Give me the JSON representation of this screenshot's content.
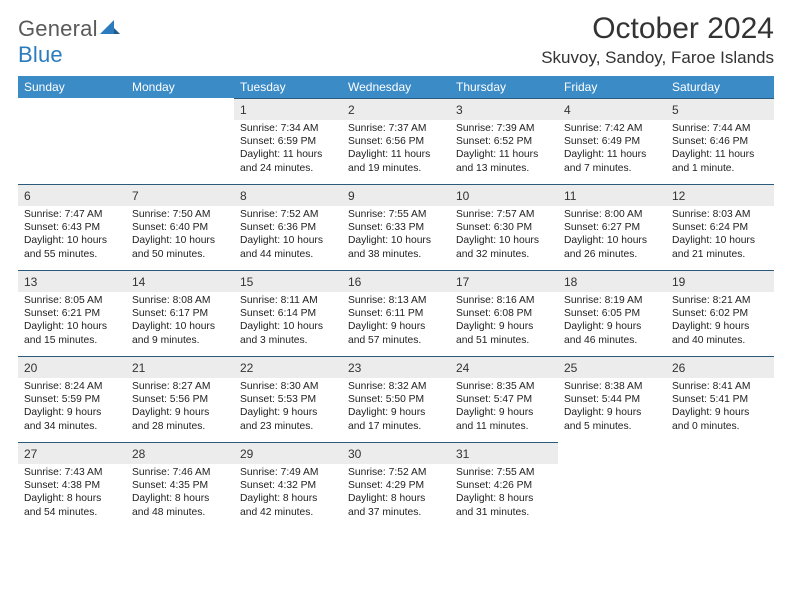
{
  "header": {
    "logo_part1": "General",
    "logo_part2": "Blue",
    "title": "October 2024",
    "location": "Skuvoy, Sandoy, Faroe Islands"
  },
  "calendar": {
    "day_labels": [
      "Sunday",
      "Monday",
      "Tuesday",
      "Wednesday",
      "Thursday",
      "Friday",
      "Saturday"
    ],
    "header_bg": "#3b8bc7",
    "header_fg": "#ffffff",
    "daynum_bg": "#ececec",
    "row_border": "#2b5a7b",
    "text_color": "#222222",
    "font_size_header": 12,
    "font_size_daynum": 12,
    "font_size_detail": 10.3,
    "leading_blanks": 2,
    "days": [
      {
        "n": "1",
        "sunrise": "7:34 AM",
        "sunset": "6:59 PM",
        "daylight": "11 hours and 24 minutes."
      },
      {
        "n": "2",
        "sunrise": "7:37 AM",
        "sunset": "6:56 PM",
        "daylight": "11 hours and 19 minutes."
      },
      {
        "n": "3",
        "sunrise": "7:39 AM",
        "sunset": "6:52 PM",
        "daylight": "11 hours and 13 minutes."
      },
      {
        "n": "4",
        "sunrise": "7:42 AM",
        "sunset": "6:49 PM",
        "daylight": "11 hours and 7 minutes."
      },
      {
        "n": "5",
        "sunrise": "7:44 AM",
        "sunset": "6:46 PM",
        "daylight": "11 hours and 1 minute."
      },
      {
        "n": "6",
        "sunrise": "7:47 AM",
        "sunset": "6:43 PM",
        "daylight": "10 hours and 55 minutes."
      },
      {
        "n": "7",
        "sunrise": "7:50 AM",
        "sunset": "6:40 PM",
        "daylight": "10 hours and 50 minutes."
      },
      {
        "n": "8",
        "sunrise": "7:52 AM",
        "sunset": "6:36 PM",
        "daylight": "10 hours and 44 minutes."
      },
      {
        "n": "9",
        "sunrise": "7:55 AM",
        "sunset": "6:33 PM",
        "daylight": "10 hours and 38 minutes."
      },
      {
        "n": "10",
        "sunrise": "7:57 AM",
        "sunset": "6:30 PM",
        "daylight": "10 hours and 32 minutes."
      },
      {
        "n": "11",
        "sunrise": "8:00 AM",
        "sunset": "6:27 PM",
        "daylight": "10 hours and 26 minutes."
      },
      {
        "n": "12",
        "sunrise": "8:03 AM",
        "sunset": "6:24 PM",
        "daylight": "10 hours and 21 minutes."
      },
      {
        "n": "13",
        "sunrise": "8:05 AM",
        "sunset": "6:21 PM",
        "daylight": "10 hours and 15 minutes."
      },
      {
        "n": "14",
        "sunrise": "8:08 AM",
        "sunset": "6:17 PM",
        "daylight": "10 hours and 9 minutes."
      },
      {
        "n": "15",
        "sunrise": "8:11 AM",
        "sunset": "6:14 PM",
        "daylight": "10 hours and 3 minutes."
      },
      {
        "n": "16",
        "sunrise": "8:13 AM",
        "sunset": "6:11 PM",
        "daylight": "9 hours and 57 minutes."
      },
      {
        "n": "17",
        "sunrise": "8:16 AM",
        "sunset": "6:08 PM",
        "daylight": "9 hours and 51 minutes."
      },
      {
        "n": "18",
        "sunrise": "8:19 AM",
        "sunset": "6:05 PM",
        "daylight": "9 hours and 46 minutes."
      },
      {
        "n": "19",
        "sunrise": "8:21 AM",
        "sunset": "6:02 PM",
        "daylight": "9 hours and 40 minutes."
      },
      {
        "n": "20",
        "sunrise": "8:24 AM",
        "sunset": "5:59 PM",
        "daylight": "9 hours and 34 minutes."
      },
      {
        "n": "21",
        "sunrise": "8:27 AM",
        "sunset": "5:56 PM",
        "daylight": "9 hours and 28 minutes."
      },
      {
        "n": "22",
        "sunrise": "8:30 AM",
        "sunset": "5:53 PM",
        "daylight": "9 hours and 23 minutes."
      },
      {
        "n": "23",
        "sunrise": "8:32 AM",
        "sunset": "5:50 PM",
        "daylight": "9 hours and 17 minutes."
      },
      {
        "n": "24",
        "sunrise": "8:35 AM",
        "sunset": "5:47 PM",
        "daylight": "9 hours and 11 minutes."
      },
      {
        "n": "25",
        "sunrise": "8:38 AM",
        "sunset": "5:44 PM",
        "daylight": "9 hours and 5 minutes."
      },
      {
        "n": "26",
        "sunrise": "8:41 AM",
        "sunset": "5:41 PM",
        "daylight": "9 hours and 0 minutes."
      },
      {
        "n": "27",
        "sunrise": "7:43 AM",
        "sunset": "4:38 PM",
        "daylight": "8 hours and 54 minutes."
      },
      {
        "n": "28",
        "sunrise": "7:46 AM",
        "sunset": "4:35 PM",
        "daylight": "8 hours and 48 minutes."
      },
      {
        "n": "29",
        "sunrise": "7:49 AM",
        "sunset": "4:32 PM",
        "daylight": "8 hours and 42 minutes."
      },
      {
        "n": "30",
        "sunrise": "7:52 AM",
        "sunset": "4:29 PM",
        "daylight": "8 hours and 37 minutes."
      },
      {
        "n": "31",
        "sunrise": "7:55 AM",
        "sunset": "4:26 PM",
        "daylight": "8 hours and 31 minutes."
      }
    ],
    "labels": {
      "sunrise": "Sunrise: ",
      "sunset": "Sunset: ",
      "daylight": "Daylight: "
    }
  }
}
